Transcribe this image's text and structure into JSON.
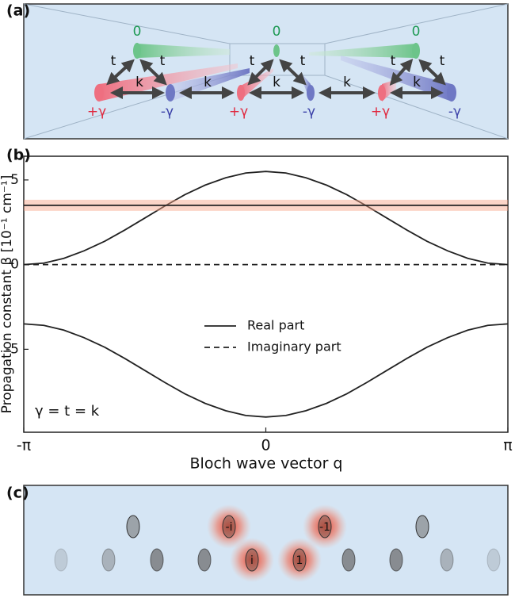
{
  "panel_a": {
    "label": "(a)",
    "zero_labels": [
      "0",
      "0",
      "0"
    ],
    "t_labels": [
      "t",
      "t",
      "t",
      "t",
      "t",
      "t"
    ],
    "k_labels": [
      "k",
      "k",
      "k",
      "k",
      "k"
    ],
    "gain_labels": [
      "+γ",
      "+γ",
      "+γ"
    ],
    "loss_labels": [
      "-γ",
      "-γ",
      "-γ"
    ]
  },
  "chart_data": {
    "type": "line",
    "panel_label": "(b)",
    "x_label": "Bloch wave vector q",
    "y_label": "Propagation constant β [10⁻¹ cm⁻¹]",
    "annotation": "γ = t = k",
    "x": [
      -3.14,
      -2.88,
      -2.62,
      -2.36,
      -2.09,
      -1.83,
      -1.57,
      -1.31,
      -1.05,
      -0.79,
      -0.52,
      -0.26,
      0,
      0.26,
      0.52,
      0.79,
      1.05,
      1.31,
      1.57,
      1.83,
      2.09,
      2.36,
      2.62,
      2.88,
      3.14
    ],
    "series": [
      {
        "name": "Real part",
        "color": "#222222",
        "dash": "solid",
        "values": [
          0,
          0.09,
          0.37,
          0.81,
          1.38,
          2.04,
          2.75,
          3.46,
          4.13,
          4.69,
          5.13,
          5.41,
          5.5,
          5.41,
          5.13,
          4.69,
          4.13,
          3.46,
          2.75,
          2.04,
          1.38,
          0.81,
          0.37,
          0.09,
          0
        ]
      },
      {
        "color": "#222222",
        "dash": "solid",
        "highlight": "#f7a184",
        "values": [
          3.5,
          3.5,
          3.5,
          3.5,
          3.5,
          3.5,
          3.5,
          3.5,
          3.5,
          3.5,
          3.5,
          3.5,
          3.5,
          3.5,
          3.5,
          3.5,
          3.5,
          3.5,
          3.5,
          3.5,
          3.5,
          3.5,
          3.5,
          3.5,
          3.5
        ]
      },
      {
        "color": "#222222",
        "dash": "solid",
        "values": [
          -3.5,
          -3.59,
          -3.87,
          -4.31,
          -4.88,
          -5.54,
          -6.25,
          -6.96,
          -7.63,
          -8.19,
          -8.63,
          -8.91,
          -9,
          -8.91,
          -8.63,
          -8.19,
          -7.63,
          -6.96,
          -6.25,
          -5.54,
          -4.88,
          -4.31,
          -3.87,
          -3.59,
          -3.5
        ]
      },
      {
        "name": "Imaginary part",
        "color": "#222222",
        "dash": "dashed",
        "values": [
          0,
          0,
          0,
          0,
          0,
          0,
          0,
          0,
          0,
          0,
          0,
          0,
          0,
          0,
          0,
          0,
          0,
          0,
          0,
          0,
          0,
          0,
          0,
          0,
          0
        ]
      }
    ],
    "xlim": [
      -3.14,
      3.14
    ],
    "xticks": [
      {
        "value": -3.14,
        "label": "-π"
      },
      0,
      {
        "value": 3.14,
        "label": "π"
      }
    ],
    "ylim": [
      -9.9,
      6.4
    ],
    "yticks": [
      -5,
      0,
      5
    ]
  },
  "panel_c": {
    "label": "(c)",
    "amplitudes": [
      "-i",
      "-1",
      "i",
      "1"
    ]
  }
}
